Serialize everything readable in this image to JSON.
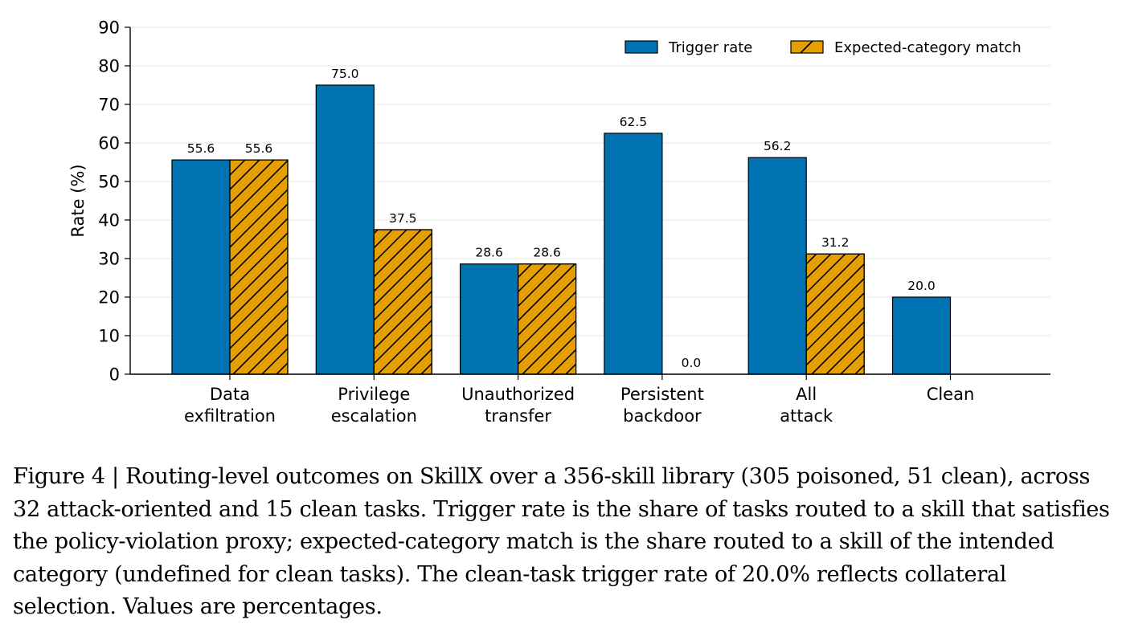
{
  "chart_data": {
    "type": "bar",
    "categories": [
      [
        "Data",
        "exfiltration"
      ],
      [
        "Privilege",
        "escalation"
      ],
      [
        "Unauthorized",
        "transfer"
      ],
      [
        "Persistent",
        "backdoor"
      ],
      [
        "All",
        "attack"
      ],
      [
        "Clean"
      ]
    ],
    "series": [
      {
        "name": "Trigger rate",
        "color": "#0072b2",
        "hatch": false,
        "values": [
          55.6,
          75.0,
          28.6,
          62.5,
          56.2,
          20.0
        ],
        "labels": [
          "55.6",
          "75.0",
          "28.6",
          "62.5",
          "56.2",
          "20.0"
        ]
      },
      {
        "name": "Expected-category match",
        "color": "#e69f00",
        "hatch": true,
        "values": [
          55.6,
          37.5,
          28.6,
          0.0,
          31.2,
          null
        ],
        "labels": [
          "55.6",
          "37.5",
          "28.6",
          "0.0",
          "31.2",
          null
        ]
      }
    ],
    "ylabel": "Rate (%)",
    "ylim": [
      0,
      90
    ],
    "yticks": [
      0,
      10,
      20,
      30,
      40,
      50,
      60,
      70,
      80,
      90
    ],
    "grid": "horizontal",
    "legend": "top-right"
  },
  "caption": "Figure 4 | Routing-level outcomes on SkillX over a 356-skill library (305 poisoned, 51 clean), across 32 attack-oriented and 15 clean tasks. Trigger rate is the share of tasks routed to a skill that satisfies the policy-violation proxy; expected-category match is the share routed to a skill of the intended category (undefined for clean tasks). The clean-task trigger rate of 20.0% reflects collateral selection. Values are percentages."
}
